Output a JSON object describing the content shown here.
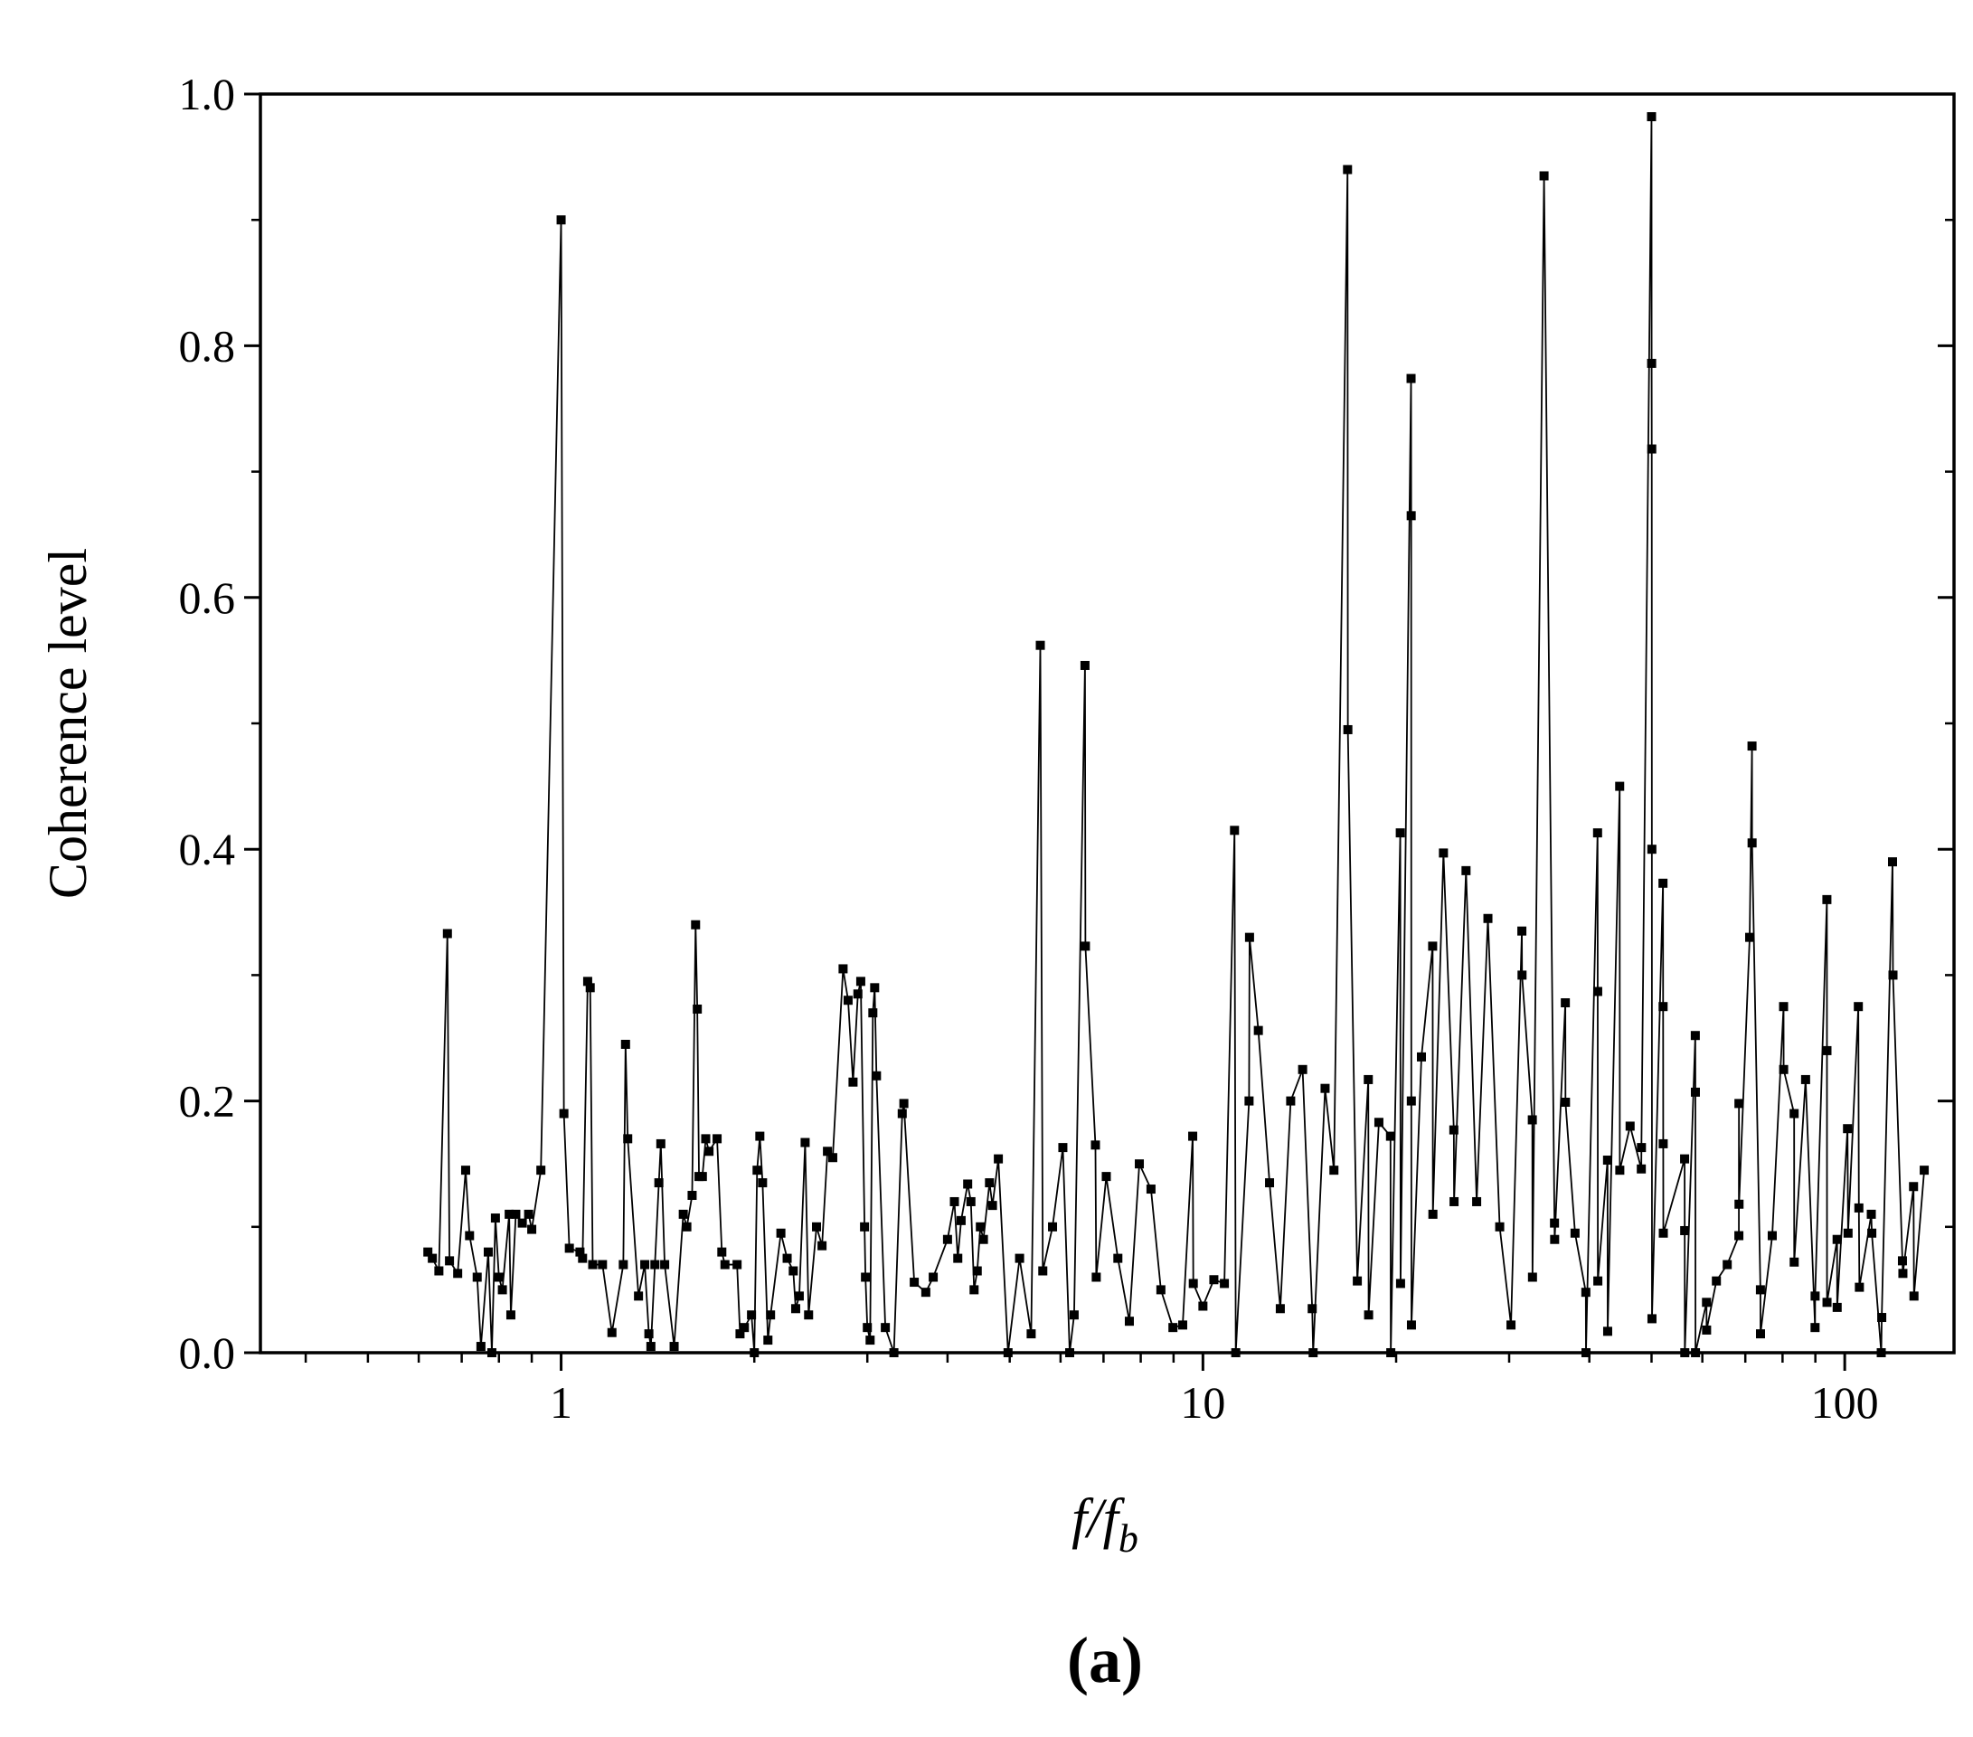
{
  "chart_data": {
    "type": "line",
    "y_label": "Coherence level",
    "x_label": "f/f",
    "x_label_subscript": "b",
    "panel_label": "(a)",
    "x_log": true,
    "color": "#000000",
    "marker": "square",
    "xlim": [
      0.34,
      148
    ],
    "xticks": [
      1,
      10,
      100
    ],
    "xminor_ticks": [
      0.4,
      0.5,
      0.6,
      0.7,
      0.8,
      0.9,
      2,
      3,
      4,
      5,
      6,
      7,
      8,
      9,
      20,
      30,
      40,
      50,
      60,
      70,
      80,
      90
    ],
    "ylim": [
      0,
      1
    ],
    "yticks": [
      {
        "value": 0,
        "label": "0.0"
      },
      0.2,
      0.4,
      0.6,
      0.8,
      {
        "value": 1,
        "label": "1.0"
      }
    ],
    "yminor_ticks": [
      0.1,
      0.3,
      0.5,
      0.7,
      0.9
    ],
    "x": [
      0.62,
      0.63,
      0.645,
      0.665,
      0.67,
      0.69,
      0.71,
      0.72,
      0.74,
      0.75,
      0.77,
      0.78,
      0.79,
      0.8,
      0.81,
      0.83,
      0.835,
      0.85,
      0.87,
      0.89,
      0.9,
      0.93,
      1.0,
      1.01,
      1.03,
      1.07,
      1.08,
      1.1,
      1.11,
      1.12,
      1.16,
      1.2,
      1.25,
      1.26,
      1.27,
      1.32,
      1.35,
      1.37,
      1.38,
      1.4,
      1.42,
      1.43,
      1.45,
      1.5,
      1.55,
      1.57,
      1.6,
      1.62,
      1.63,
      1.64,
      1.66,
      1.68,
      1.7,
      1.75,
      1.78,
      1.8,
      1.88,
      1.9,
      1.93,
      1.98,
      2.0,
      2.02,
      2.04,
      2.06,
      2.1,
      2.12,
      2.2,
      2.25,
      2.3,
      2.32,
      2.35,
      2.4,
      2.43,
      2.5,
      2.55,
      2.6,
      2.65,
      2.75,
      2.8,
      2.85,
      2.9,
      2.93,
      2.97,
      2.98,
      3.0,
      3.03,
      3.06,
      3.08,
      3.1,
      3.2,
      3.3,
      3.4,
      3.42,
      3.55,
      3.7,
      3.8,
      4.0,
      4.1,
      4.15,
      4.2,
      4.3,
      4.35,
      4.4,
      4.45,
      4.5,
      4.55,
      4.65,
      4.7,
      4.8,
      4.97,
      5.18,
      5.4,
      5.58,
      5.63,
      5.83,
      6.05,
      6.2,
      6.3,
      6.55,
      6.56,
      6.8,
      6.82,
      7.07,
      7.37,
      7.68,
      7.96,
      8.3,
      8.6,
      8.98,
      9.3,
      9.64,
      9.66,
      10.0,
      10.4,
      10.8,
      11.2,
      11.25,
      11.8,
      11.82,
      12.2,
      12.7,
      13.2,
      13.7,
      14.3,
      14.8,
      14.85,
      15.5,
      16.0,
      16.8,
      16.82,
      17.4,
      18.1,
      18.12,
      18.8,
      19.6,
      19.62,
      20.3,
      20.32,
      21.1,
      21.11,
      21.12,
      21.13,
      21.9,
      22.8,
      22.82,
      23.7,
      24.6,
      24.62,
      25.7,
      26.7,
      27.8,
      29.0,
      30.2,
      31.4,
      31.42,
      32.6,
      32.62,
      34.0,
      35.3,
      35.32,
      36.7,
      36.72,
      38.0,
      39.5,
      39.52,
      41.2,
      41.22,
      41.24,
      42.7,
      42.72,
      44.6,
      44.62,
      46.3,
      48.2,
      48.22,
      50.0,
      50.02,
      50.04,
      50.06,
      50.08,
      52.1,
      52.12,
      52.14,
      52.16,
      56.3,
      56.32,
      56.34,
      58.5,
      58.52,
      58.54,
      60.9,
      60.92,
      63.1,
      65.6,
      68.4,
      68.42,
      68.44,
      71.1,
      71.7,
      71.72,
      73.9,
      73.92,
      77.1,
      80.3,
      80.32,
      83.4,
      83.42,
      86.9,
      89.9,
      89.92,
      93.8,
      93.82,
      93.84,
      97.3,
      97.32,
      101,
      101.2,
      105,
      105.2,
      105.4,
      110,
      110.2,
      114,
      114.2,
      118.7,
      118.9,
      123,
      123.2,
      128,
      128.2,
      133
    ],
    "values": [
      0.08,
      0.075,
      0.065,
      0.333,
      0.073,
      0.063,
      0.145,
      0.093,
      0.06,
      0.005,
      0.08,
      0.0,
      0.107,
      0.06,
      0.05,
      0.11,
      0.03,
      0.11,
      0.103,
      0.11,
      0.098,
      0.145,
      0.9,
      0.19,
      0.083,
      0.08,
      0.075,
      0.295,
      0.29,
      0.07,
      0.07,
      0.016,
      0.07,
      0.245,
      0.17,
      0.045,
      0.07,
      0.015,
      0.005,
      0.07,
      0.135,
      0.166,
      0.07,
      0.005,
      0.11,
      0.1,
      0.125,
      0.34,
      0.273,
      0.14,
      0.14,
      0.17,
      0.16,
      0.17,
      0.08,
      0.07,
      0.07,
      0.015,
      0.02,
      0.03,
      0.0,
      0.145,
      0.172,
      0.135,
      0.01,
      0.03,
      0.095,
      0.075,
      0.065,
      0.035,
      0.045,
      0.167,
      0.03,
      0.1,
      0.085,
      0.16,
      0.155,
      0.305,
      0.28,
      0.215,
      0.285,
      0.295,
      0.1,
      0.06,
      0.02,
      0.01,
      0.27,
      0.29,
      0.22,
      0.02,
      0.0,
      0.19,
      0.198,
      0.056,
      0.048,
      0.06,
      0.09,
      0.12,
      0.075,
      0.105,
      0.134,
      0.12,
      0.05,
      0.065,
      0.1,
      0.09,
      0.135,
      0.117,
      0.154,
      0.0,
      0.075,
      0.015,
      0.562,
      0.065,
      0.1,
      0.163,
      0.0,
      0.03,
      0.546,
      0.323,
      0.165,
      0.06,
      0.14,
      0.075,
      0.025,
      0.15,
      0.13,
      0.05,
      0.02,
      0.022,
      0.172,
      0.055,
      0.037,
      0.058,
      0.055,
      0.415,
      0.0,
      0.2,
      0.33,
      0.256,
      0.135,
      0.035,
      0.2,
      0.225,
      0.035,
      0.0,
      0.21,
      0.145,
      0.94,
      0.495,
      0.057,
      0.217,
      0.03,
      0.183,
      0.172,
      0.0,
      0.413,
      0.055,
      0.774,
      0.665,
      0.2,
      0.022,
      0.235,
      0.323,
      0.11,
      0.397,
      0.177,
      0.12,
      0.383,
      0.12,
      0.345,
      0.1,
      0.022,
      0.335,
      0.3,
      0.185,
      0.06,
      0.935,
      0.103,
      0.09,
      0.278,
      0.199,
      0.095,
      0.048,
      0.0,
      0.413,
      0.287,
      0.057,
      0.153,
      0.017,
      0.45,
      0.145,
      0.18,
      0.146,
      0.163,
      0.982,
      0.786,
      0.718,
      0.4,
      0.027,
      0.373,
      0.275,
      0.166,
      0.095,
      0.154,
      0.097,
      0.0,
      0.252,
      0.207,
      0.0,
      0.04,
      0.018,
      0.057,
      0.07,
      0.093,
      0.198,
      0.118,
      0.33,
      0.482,
      0.405,
      0.05,
      0.015,
      0.093,
      0.275,
      0.225,
      0.19,
      0.072,
      0.217,
      0.02,
      0.045,
      0.36,
      0.24,
      0.04,
      0.09,
      0.036,
      0.178,
      0.095,
      0.275,
      0.115,
      0.052,
      0.11,
      0.095,
      0.0,
      0.028,
      0.39,
      0.3,
      0.073,
      0.063,
      0.132,
      0.045,
      0.145
    ]
  }
}
